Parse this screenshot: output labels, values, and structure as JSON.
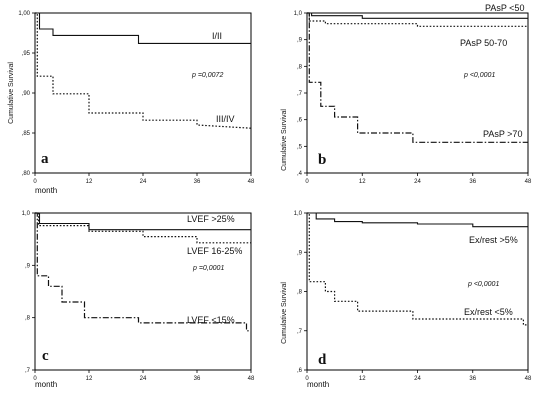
{
  "chart_data": [
    {
      "type": "line",
      "panel_label": "a",
      "ylabel": "Cumulative Survival",
      "xlabel": "month",
      "xlim": [
        0,
        48
      ],
      "ylim": [
        0.8,
        1.0
      ],
      "x_ticks": [
        "0",
        "12",
        "24",
        "36",
        "48"
      ],
      "y_ticks": [
        ",80",
        ",85",
        ",90",
        ",95",
        "1,00"
      ],
      "y_tick_values": [
        0.8,
        0.85,
        0.9,
        0.95,
        1.0
      ],
      "p_value_text": "p =0,0072",
      "series": [
        {
          "name": "I/II",
          "style": "solid",
          "x": [
            0,
            1,
            1,
            4,
            4,
            23,
            23,
            48
          ],
          "y": [
            1.0,
            1.0,
            0.98,
            0.98,
            0.972,
            0.972,
            0.962,
            0.962
          ]
        },
        {
          "name": "III/IV",
          "style": "dotted",
          "x": [
            0,
            0.5,
            0.5,
            4,
            4,
            12,
            12,
            24,
            24,
            36,
            36,
            48
          ],
          "y": [
            1.0,
            1.0,
            0.921,
            0.921,
            0.899,
            0.899,
            0.875,
            0.875,
            0.866,
            0.866,
            0.86,
            0.856
          ]
        }
      ]
    },
    {
      "type": "line",
      "panel_label": "b",
      "ylabel": "Cumulative Survival",
      "xlabel": "",
      "xlim": [
        0,
        48
      ],
      "ylim": [
        0.4,
        1.0
      ],
      "x_ticks": [
        "0",
        "12",
        "24",
        "36",
        "48"
      ],
      "y_ticks": [
        ",4",
        ",5",
        ",6",
        ",7",
        ",8",
        ",9",
        "1,0"
      ],
      "y_tick_values": [
        0.4,
        0.5,
        0.6,
        0.7,
        0.8,
        0.9,
        1.0
      ],
      "p_value_text": "p <0,0001",
      "series": [
        {
          "name": "PAsP <50",
          "style": "solid",
          "x": [
            0,
            1,
            1,
            12,
            12,
            48
          ],
          "y": [
            1.0,
            1.0,
            0.99,
            0.99,
            0.98,
            0.98
          ]
        },
        {
          "name": "PAsP 50-70",
          "style": "dotted",
          "x": [
            0,
            0.5,
            0.5,
            4,
            4,
            24,
            24,
            48
          ],
          "y": [
            1.0,
            1.0,
            0.97,
            0.97,
            0.96,
            0.96,
            0.95,
            0.95
          ]
        },
        {
          "name": "PAsP >70",
          "style": "dashdot",
          "x": [
            0,
            0.5,
            0.5,
            3,
            3,
            6,
            6,
            11,
            11,
            23,
            23,
            48
          ],
          "y": [
            1.0,
            1.0,
            0.74,
            0.74,
            0.65,
            0.65,
            0.61,
            0.61,
            0.55,
            0.55,
            0.515,
            0.515
          ]
        }
      ]
    },
    {
      "type": "line",
      "panel_label": "c",
      "ylabel": "",
      "xlabel": "month",
      "xlim": [
        0,
        48
      ],
      "ylim": [
        0.7,
        1.0
      ],
      "x_ticks": [
        "0",
        "12",
        "24",
        "36",
        "48"
      ],
      "y_ticks": [
        ",7",
        ",8",
        ",9",
        "1,0"
      ],
      "y_tick_values": [
        0.7,
        0.8,
        0.9,
        1.0
      ],
      "p_value_text": "p =0,0001",
      "series": [
        {
          "name": "LVEF >25%",
          "style": "solid",
          "x": [
            0,
            1,
            1,
            12,
            12,
            48
          ],
          "y": [
            1.0,
            1.0,
            0.98,
            0.98,
            0.968,
            0.968
          ]
        },
        {
          "name": "LVEF 16-25%",
          "style": "dotted",
          "x": [
            0,
            0.8,
            0.8,
            12,
            12,
            24,
            24,
            36,
            36,
            48
          ],
          "y": [
            1.0,
            1.0,
            0.976,
            0.976,
            0.965,
            0.965,
            0.955,
            0.955,
            0.943,
            0.943
          ]
        },
        {
          "name": "LVEF <15%",
          "style": "dashdot",
          "x": [
            0,
            0.5,
            0.5,
            3,
            3,
            6,
            6,
            11,
            11,
            23,
            23,
            47,
            47,
            48
          ],
          "y": [
            1.0,
            1.0,
            0.88,
            0.88,
            0.86,
            0.86,
            0.83,
            0.83,
            0.8,
            0.8,
            0.79,
            0.79,
            0.775,
            0.775
          ]
        }
      ]
    },
    {
      "type": "line",
      "panel_label": "d",
      "ylabel": "Cumulative Survival",
      "xlabel": "month",
      "xlim": [
        0,
        48
      ],
      "ylim": [
        0.6,
        1.0
      ],
      "x_ticks": [
        "0",
        "12",
        "24",
        "36",
        "48"
      ],
      "y_ticks": [
        ",6",
        ",7",
        ",8",
        ",9",
        "1,0"
      ],
      "y_tick_values": [
        0.6,
        0.7,
        0.8,
        0.9,
        1.0
      ],
      "p_value_text": "p <0,0001",
      "series": [
        {
          "name": "Ex/rest >5%",
          "style": "solid",
          "x": [
            0,
            2,
            2,
            6,
            6,
            12,
            12,
            24,
            24,
            36,
            36,
            48
          ],
          "y": [
            1.0,
            1.0,
            0.985,
            0.985,
            0.978,
            0.978,
            0.975,
            0.975,
            0.972,
            0.972,
            0.965,
            0.965
          ]
        },
        {
          "name": "Ex/rest <5%",
          "style": "dotted",
          "x": [
            0,
            0.5,
            0.5,
            4,
            4,
            6,
            6,
            11,
            11,
            23,
            23,
            47,
            47,
            48
          ],
          "y": [
            1.0,
            1.0,
            0.825,
            0.825,
            0.8,
            0.8,
            0.775,
            0.775,
            0.75,
            0.75,
            0.73,
            0.73,
            0.715,
            0.715
          ]
        }
      ]
    }
  ]
}
